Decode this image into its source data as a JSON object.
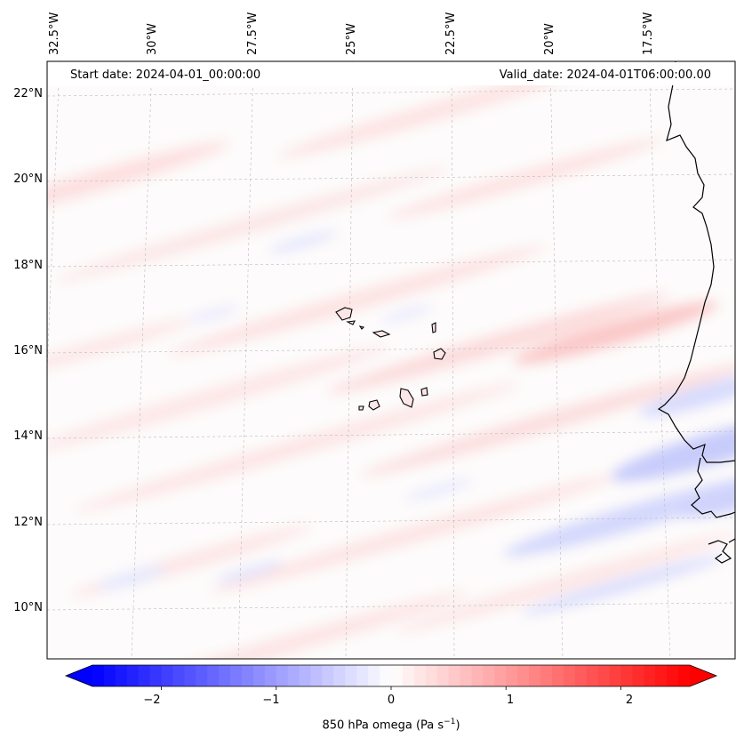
{
  "header": {
    "start_date": "Start date: 2024-04-01_00:00:00",
    "valid_date": "Valid_date: 2024-04-01T06:00:00.00"
  },
  "map": {
    "lon_labels": [
      "32.5°W",
      "30°W",
      "27.5°W",
      "25°W",
      "22.5°W",
      "20°W",
      "17.5°W"
    ],
    "lat_labels": [
      "22°N",
      "20°N",
      "18°N",
      "16°N",
      "14°N",
      "12°N",
      "10°N"
    ]
  },
  "colorbar": {
    "ticks": [
      "−2",
      "−1",
      "0",
      "1",
      "2"
    ],
    "label_main": "850 hPa omega (Pa s",
    "label_sup": "−1",
    "label_end": ")",
    "colormap": "bwr",
    "vmin": -2.6,
    "vmax": 2.6,
    "color_low": "#0000ff",
    "color_mid": "#ffffff",
    "color_high": "#ff0000"
  }
}
